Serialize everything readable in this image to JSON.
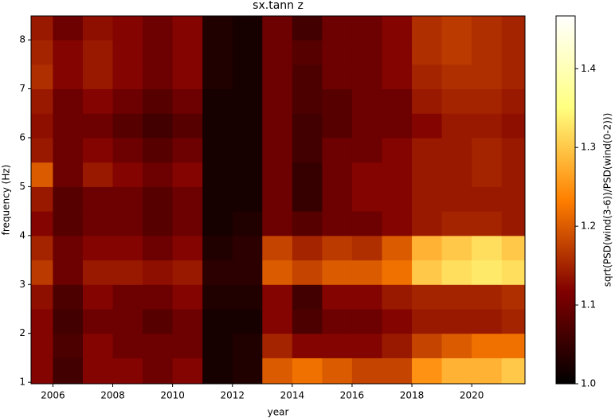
{
  "chart_data": {
    "type": "heatmap",
    "title": "sx.tann z",
    "xlabel": "year",
    "ylabel": "frequency (Hz)",
    "colorbar_label": "sqrt(PSD(wind(3-6))/PSD(wind(0-2)))",
    "colormap": "afmhot",
    "xlim": [
      2005.27,
      2021.78
    ],
    "ylim": [
      0.97,
      8.49
    ],
    "clim": [
      1.0,
      1.467
    ],
    "xticks": [
      2006,
      2008,
      2010,
      2012,
      2014,
      2016,
      2018,
      2020
    ],
    "yticks": [
      1,
      2,
      3,
      4,
      5,
      6,
      7,
      8
    ],
    "cticks": [
      {
        "value": 1.0,
        "label": "1.0"
      },
      {
        "value": 1.1,
        "label": "1.1"
      },
      {
        "value": 1.2,
        "label": "1.2"
      },
      {
        "value": 1.3,
        "label": "1.3"
      },
      {
        "value": 1.4,
        "label": "1.4"
      }
    ],
    "xbins": [
      2005.27,
      2006,
      2007,
      2008,
      2009,
      2010,
      2011,
      2012,
      2013,
      2014,
      2015,
      2016,
      2017,
      2018,
      2019,
      2020,
      2021,
      2021.78
    ],
    "ybins": [
      0.97,
      1.5,
      2,
      2.5,
      3,
      3.5,
      4,
      4.5,
      5,
      5.5,
      6,
      6.5,
      7,
      7.5,
      8,
      8.49
    ],
    "z": [
      [
        1.12,
        1.06,
        1.12,
        1.12,
        1.1,
        1.12,
        1.02,
        1.03,
        1.2,
        1.22,
        1.2,
        1.18,
        1.18,
        1.25,
        1.28,
        1.28,
        1.3
      ],
      [
        1.12,
        1.07,
        1.12,
        1.1,
        1.1,
        1.1,
        1.02,
        1.03,
        1.15,
        1.12,
        1.12,
        1.12,
        1.14,
        1.18,
        1.2,
        1.22,
        1.22
      ],
      [
        1.12,
        1.06,
        1.1,
        1.1,
        1.08,
        1.1,
        1.02,
        1.02,
        1.12,
        1.07,
        1.1,
        1.1,
        1.12,
        1.14,
        1.14,
        1.14,
        1.15
      ],
      [
        1.13,
        1.07,
        1.12,
        1.1,
        1.1,
        1.12,
        1.03,
        1.03,
        1.12,
        1.06,
        1.12,
        1.12,
        1.14,
        1.15,
        1.15,
        1.15,
        1.16
      ],
      [
        1.17,
        1.1,
        1.14,
        1.14,
        1.13,
        1.14,
        1.04,
        1.04,
        1.2,
        1.18,
        1.2,
        1.2,
        1.22,
        1.3,
        1.32,
        1.33,
        1.32
      ],
      [
        1.15,
        1.1,
        1.12,
        1.12,
        1.1,
        1.12,
        1.03,
        1.04,
        1.18,
        1.15,
        1.17,
        1.16,
        1.2,
        1.28,
        1.3,
        1.32,
        1.3
      ],
      [
        1.12,
        1.08,
        1.1,
        1.1,
        1.08,
        1.1,
        1.02,
        1.03,
        1.1,
        1.08,
        1.1,
        1.1,
        1.12,
        1.14,
        1.15,
        1.15,
        1.14
      ],
      [
        1.14,
        1.08,
        1.1,
        1.1,
        1.08,
        1.1,
        1.02,
        1.02,
        1.1,
        1.05,
        1.1,
        1.12,
        1.12,
        1.14,
        1.14,
        1.14,
        1.14
      ],
      [
        1.2,
        1.1,
        1.14,
        1.12,
        1.1,
        1.12,
        1.02,
        1.02,
        1.1,
        1.05,
        1.1,
        1.12,
        1.12,
        1.14,
        1.14,
        1.15,
        1.14
      ],
      [
        1.14,
        1.1,
        1.12,
        1.1,
        1.08,
        1.1,
        1.02,
        1.02,
        1.1,
        1.06,
        1.1,
        1.1,
        1.12,
        1.14,
        1.14,
        1.15,
        1.14
      ],
      [
        1.13,
        1.1,
        1.1,
        1.08,
        1.06,
        1.08,
        1.02,
        1.02,
        1.1,
        1.06,
        1.08,
        1.1,
        1.1,
        1.12,
        1.14,
        1.14,
        1.13
      ],
      [
        1.14,
        1.1,
        1.12,
        1.1,
        1.08,
        1.1,
        1.02,
        1.02,
        1.1,
        1.07,
        1.08,
        1.1,
        1.1,
        1.14,
        1.15,
        1.15,
        1.14
      ],
      [
        1.16,
        1.12,
        1.14,
        1.12,
        1.1,
        1.12,
        1.03,
        1.02,
        1.1,
        1.07,
        1.1,
        1.1,
        1.12,
        1.15,
        1.16,
        1.16,
        1.15
      ],
      [
        1.15,
        1.12,
        1.14,
        1.12,
        1.1,
        1.12,
        1.03,
        1.02,
        1.1,
        1.08,
        1.1,
        1.1,
        1.12,
        1.16,
        1.17,
        1.16,
        1.15
      ],
      [
        1.14,
        1.1,
        1.13,
        1.12,
        1.1,
        1.12,
        1.03,
        1.02,
        1.1,
        1.06,
        1.1,
        1.1,
        1.12,
        1.16,
        1.17,
        1.16,
        1.15
      ]
    ]
  }
}
